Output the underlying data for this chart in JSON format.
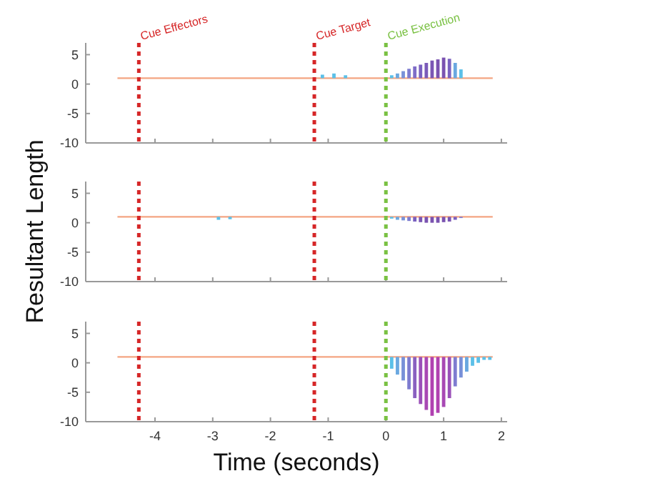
{
  "chart_data": [
    {
      "type": "line",
      "ylim": [
        -10,
        7
      ],
      "yticks": [
        -10,
        -5,
        0,
        5
      ],
      "xlim": [
        -5.2,
        2.1
      ],
      "xticks": [
        -4,
        -3,
        -2,
        -1,
        0,
        1,
        2
      ],
      "tick_labels": "y",
      "grid": false,
      "ref_lines": [
        {
          "axis": "x",
          "value": -4.28,
          "label": "Cue Effectors",
          "color": "#d62728",
          "line_style": "dotted"
        },
        {
          "axis": "x",
          "value": -1.24,
          "label": "Cue Target",
          "color": "#d62728",
          "line_style": "dotted"
        },
        {
          "axis": "x",
          "value": 0,
          "label": "Cue Execution",
          "color": "#7ac143",
          "line_style": "dotted"
        }
      ],
      "series": [
        {
          "type": "bar",
          "x": [
            -1.1,
            -0.9,
            -0.7,
            0.1,
            0.2,
            0.3,
            0.4,
            0.5,
            0.6,
            0.7,
            0.8,
            0.9,
            1.0,
            1.1,
            1.2,
            1.3
          ],
          "base": [
            1,
            1,
            1,
            1,
            1,
            1,
            1,
            1,
            1,
            1,
            1,
            1,
            1,
            1,
            1,
            1
          ],
          "values": [
            0.6,
            0.8,
            0.5,
            0.5,
            0.8,
            1.2,
            1.6,
            2,
            2.3,
            2.6,
            3,
            3.2,
            3.5,
            3.3,
            2.6,
            1.5
          ],
          "colors": [
            "#5bc0e8",
            "#5bc0e8",
            "#5bc0e8",
            "#5bc0e8",
            "#6aa8e0",
            "#7890d8",
            "#7e7cd0",
            "#7e6cc8",
            "#7a60c0",
            "#7a5ab8",
            "#7a56b4",
            "#7a52b0",
            "#7a52b0",
            "#7a60c0",
            "#6aa8e0",
            "#5bc0e8"
          ]
        },
        {
          "x": [
            -4.65,
            1.85
          ],
          "values": [
            1,
            1
          ],
          "color": "#f4a582"
        }
      ]
    },
    {
      "type": "line",
      "ylim": [
        -10,
        7
      ],
      "yticks": [
        -10,
        -5,
        0,
        5
      ],
      "xlim": [
        -5.2,
        2.1
      ],
      "xticks": [
        -4,
        -3,
        -2,
        -1,
        0,
        1,
        2
      ],
      "tick_labels": "y",
      "grid": false,
      "ylabel": "Resultant Length",
      "ref_lines": [
        {
          "axis": "x",
          "value": -4.28,
          "color": "#d62728",
          "line_style": "dotted"
        },
        {
          "axis": "x",
          "value": -1.24,
          "color": "#d62728",
          "line_style": "dotted"
        },
        {
          "axis": "x",
          "value": 0,
          "color": "#7ac143",
          "line_style": "dotted"
        }
      ],
      "series": [
        {
          "type": "bar",
          "x": [
            -2.9,
            -2.7,
            0.1,
            0.2,
            0.3,
            0.4,
            0.5,
            0.6,
            0.7,
            0.8,
            0.9,
            1.0,
            1.1,
            1.2,
            1.3
          ],
          "base": [
            1,
            1,
            1,
            1,
            1,
            1,
            1,
            1,
            1,
            1,
            1,
            1,
            1,
            1,
            1
          ],
          "values": [
            -0.5,
            -0.4,
            -0.3,
            -0.5,
            -0.6,
            -0.7,
            -0.8,
            -0.9,
            -1,
            -1,
            -1,
            -0.9,
            -0.8,
            -0.5,
            -0.2
          ],
          "colors": [
            "#5bc0e8",
            "#5bc0e8",
            "#5bc0e8",
            "#6aa8e0",
            "#7890d8",
            "#7e7cd0",
            "#7a60c0",
            "#7a56b4",
            "#7a52b0",
            "#7a52b0",
            "#7a52b0",
            "#7a52b0",
            "#7a56b4",
            "#7a60c0",
            "#7e7cd0"
          ]
        },
        {
          "x": [
            -4.65,
            1.85
          ],
          "values": [
            1,
            1
          ],
          "color": "#f4a582"
        }
      ]
    },
    {
      "type": "line",
      "ylim": [
        -10,
        7
      ],
      "yticks": [
        -10,
        -5,
        0,
        5
      ],
      "xlim": [
        -5.2,
        2.1
      ],
      "xticks": [
        -4,
        -3,
        -2,
        -1,
        0,
        1,
        2
      ],
      "grid": false,
      "xlabel": "Time (seconds)",
      "ref_lines": [
        {
          "axis": "x",
          "value": -4.28,
          "color": "#d62728",
          "line_style": "dotted"
        },
        {
          "axis": "x",
          "value": -1.24,
          "color": "#d62728",
          "line_style": "dotted"
        },
        {
          "axis": "x",
          "value": 0,
          "color": "#7ac143",
          "line_style": "dotted"
        }
      ],
      "series": [
        {
          "type": "bar",
          "x": [
            0.1,
            0.2,
            0.3,
            0.4,
            0.5,
            0.6,
            0.7,
            0.8,
            0.9,
            1.0,
            1.1,
            1.2,
            1.3,
            1.4,
            1.5,
            1.6,
            1.7,
            1.8
          ],
          "base": [
            1,
            1,
            1,
            1,
            1,
            1,
            1,
            1,
            1,
            1,
            1,
            1,
            1,
            1,
            1,
            1,
            1,
            1
          ],
          "values": [
            -2,
            -3,
            -4,
            -5.5,
            -7,
            -8,
            -9,
            -10,
            -9.5,
            -8.5,
            -7,
            -5,
            -3.5,
            -2.5,
            -1.5,
            -1,
            -0.5,
            -0.5
          ],
          "colors": [
            "#5bc0e8",
            "#6aa8e0",
            "#7890d8",
            "#7e7cd0",
            "#8a60c0",
            "#9a50b8",
            "#a848b4",
            "#b040b0",
            "#b040b0",
            "#a848b4",
            "#9a50b8",
            "#7e7cd0",
            "#7890d8",
            "#6aa8e0",
            "#5bc0e8",
            "#5bc0e8",
            "#5bc0e8",
            "#5bc0e8"
          ]
        },
        {
          "x": [
            -4.65,
            1.85
          ],
          "values": [
            1,
            1
          ],
          "color": "#f4a582"
        }
      ]
    }
  ]
}
